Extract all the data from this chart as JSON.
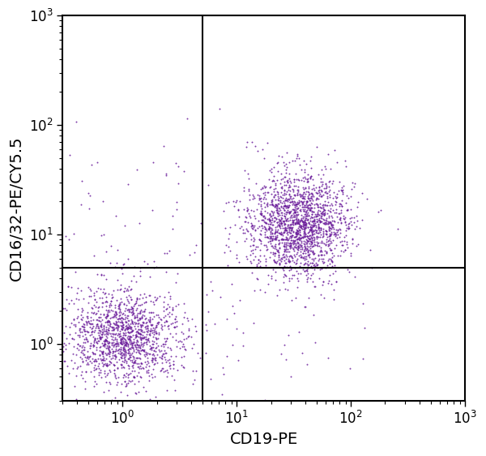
{
  "xlabel": "CD19-PE",
  "ylabel": "CD16/32-PE/CY5.5",
  "dot_color": "#6A1B9A",
  "dot_size": 2.0,
  "dot_alpha": 0.85,
  "xlim_log": [
    0.3,
    1000
  ],
  "ylim_log": [
    0.3,
    1000
  ],
  "quadrant_x": 5.0,
  "quadrant_y": 5.0,
  "cluster1": {
    "n": 1400,
    "x_center_log": 0.0,
    "x_spread_log": 0.25,
    "y_center_log": 0.05,
    "y_spread_log": 0.22
  },
  "cluster2": {
    "n": 1800,
    "x_center_log": 1.55,
    "x_spread_log": 0.22,
    "y_center_log": 1.1,
    "y_spread_log": 0.24
  },
  "scatter_extra1": {
    "n": 120,
    "x_center_log": 0.2,
    "x_spread_log": 0.55,
    "y_center_log": 0.85,
    "y_spread_log": 0.55
  },
  "scatter_extra2": {
    "n": 30,
    "x_center_log": 1.3,
    "x_spread_log": 0.45,
    "y_center_log": 0.1,
    "y_spread_log": 0.35
  },
  "xlabel_fontsize": 14,
  "ylabel_fontsize": 14,
  "tick_fontsize": 12,
  "spine_linewidth": 1.5,
  "quadrant_linewidth": 1.5
}
